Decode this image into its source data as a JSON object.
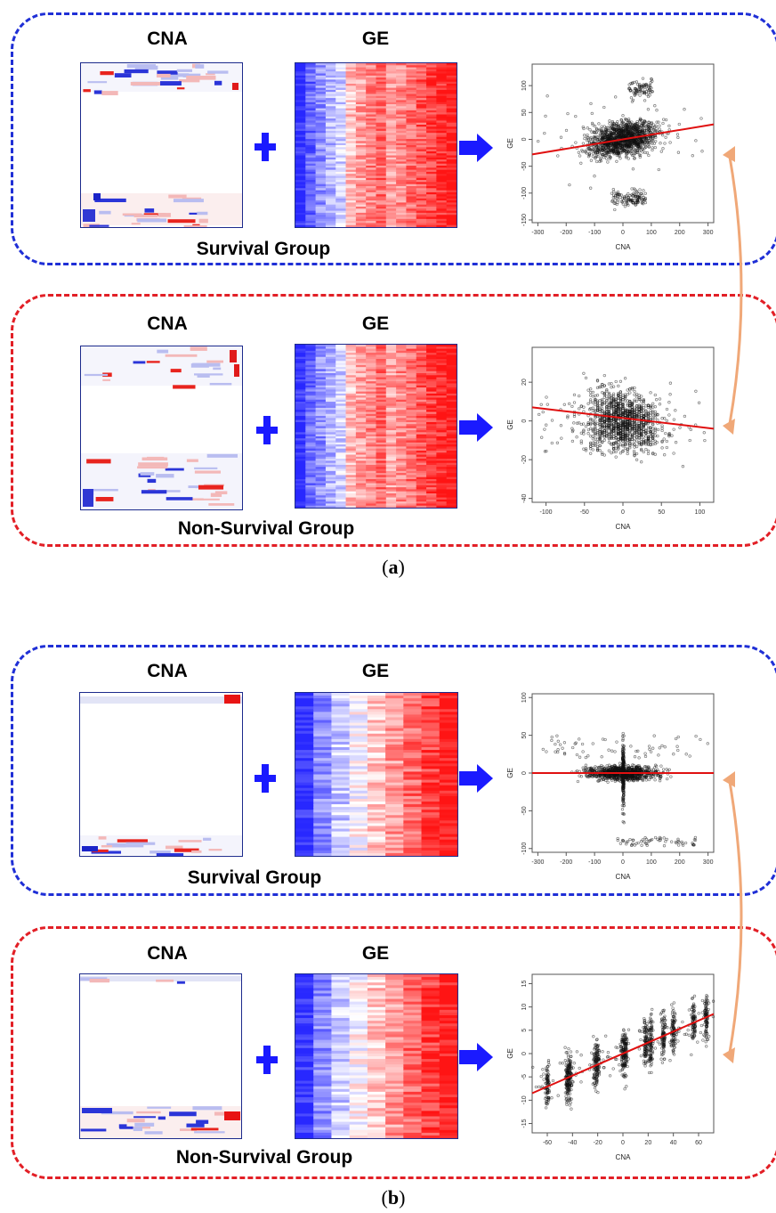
{
  "colors": {
    "survival": "#1f2fd6",
    "non_survival": "#e21f26",
    "arrow": "#1a1aff",
    "link_arrow": "#f0a878",
    "fit_line": "#e01010"
  },
  "icons": {
    "plus": "plus-icon",
    "arrow": "right-arrow-icon",
    "link": "double-headed-curved-arrow-icon"
  },
  "panels": [
    {
      "label_prefix": "(",
      "label_letter": "a",
      "label_suffix": ")",
      "groups": [
        {
          "kind": "survival",
          "cna_header": "CNA",
          "ge_header": "GE",
          "group_label": "Survival Group",
          "plot": {
            "xlabel": "CNA",
            "ylabel": "GE",
            "xticks": [
              "-300",
              "-200",
              "-100",
              "0",
              "100",
              "200",
              "300"
            ],
            "yticks": [
              "100",
              "50",
              "0",
              "-50",
              "-100",
              "-150"
            ],
            "xlim": [
              -320,
              320
            ],
            "ylim": [
              -155,
              140
            ],
            "fit": [
              [
                -320,
                -28
              ],
              [
                320,
                28
              ]
            ],
            "pattern": "a_surv"
          }
        },
        {
          "kind": "non_survival",
          "cna_header": "CNA",
          "ge_header": "GE",
          "group_label": "Non-Survival Group",
          "plot": {
            "xlabel": "CNA",
            "ylabel": "GE",
            "xticks": [
              "-100",
              "-50",
              "0",
              "50",
              "100"
            ],
            "yticks": [
              "20",
              "0",
              "-20",
              "-40"
            ],
            "xlim": [
              -118,
              118
            ],
            "ylim": [
              -42,
              38
            ],
            "fit": [
              [
                -118,
                7
              ],
              [
                118,
                -4
              ]
            ],
            "pattern": "a_non"
          }
        }
      ]
    },
    {
      "label_prefix": "(",
      "label_letter": "b",
      "label_suffix": ")",
      "groups": [
        {
          "kind": "survival",
          "cna_header": "CNA",
          "ge_header": "GE",
          "group_label": "Survival Group",
          "plot": {
            "xlabel": "CNA",
            "ylabel": "GE",
            "xticks": [
              "-300",
              "-200",
              "-100",
              "0",
              "100",
              "200",
              "300"
            ],
            "yticks": [
              "100",
              "50",
              "0",
              "-50",
              "-100"
            ],
            "xlim": [
              -320,
              320
            ],
            "ylim": [
              -105,
              105
            ],
            "fit": [
              [
                -320,
                0
              ],
              [
                320,
                0
              ]
            ],
            "pattern": "b_surv"
          }
        },
        {
          "kind": "non_survival",
          "cna_header": "CNA",
          "ge_header": "GE",
          "group_label": "Non-Survival Group",
          "plot": {
            "xlabel": "CNA",
            "ylabel": "GE",
            "xticks": [
              "-60",
              "-40",
              "-20",
              "0",
              "20",
              "40",
              "60"
            ],
            "yticks": [
              "15",
              "10",
              "5",
              "0",
              "-5",
              "-10",
              "-15"
            ],
            "xlim": [
              -72,
              72
            ],
            "ylim": [
              -17,
              17
            ],
            "fit": [
              [
                -72,
                -8.5
              ],
              [
                72,
                8.5
              ]
            ],
            "pattern": "b_non"
          }
        }
      ]
    }
  ]
}
